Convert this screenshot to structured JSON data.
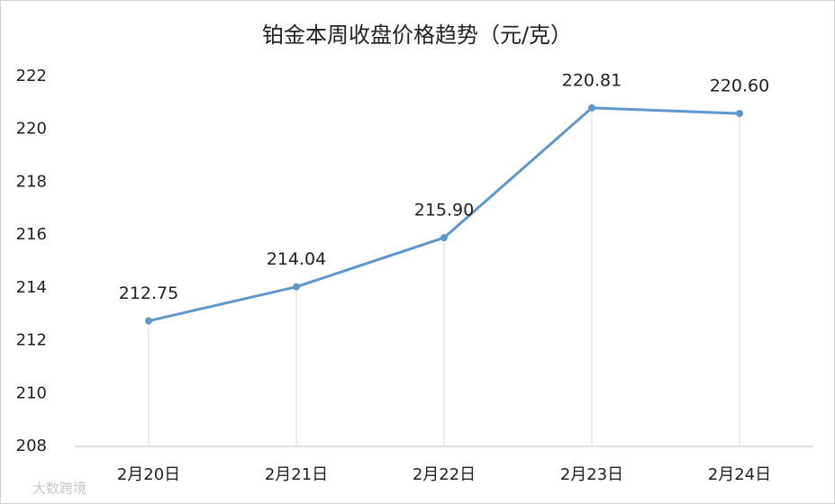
{
  "chart_data": {
    "type": "line",
    "title": "铂金本周收盘价格趋势（元/克）",
    "categories": [
      "2月20日",
      "2月21日",
      "2月22日",
      "2月23日",
      "2月24日"
    ],
    "values": [
      212.75,
      214.04,
      215.9,
      220.81,
      220.6
    ],
    "value_labels": [
      "212.75",
      "214.04",
      "215.90",
      "220.81",
      "220.60"
    ],
    "color": "#5f97cb",
    "ylim": [
      208,
      222
    ],
    "yticks": [
      208,
      210,
      212,
      214,
      216,
      218,
      220,
      222
    ],
    "grid": false,
    "drop_lines": true,
    "watermark": "大数跨境"
  }
}
